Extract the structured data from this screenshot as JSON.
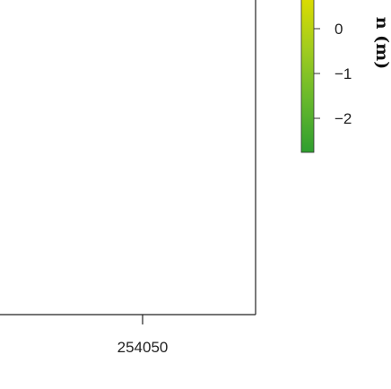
{
  "chart_data": {
    "type": "heatmap",
    "title": "",
    "xlabel": "",
    "ylabel": "",
    "x_ticks": [
      {
        "value": 254050,
        "label": "254050"
      }
    ],
    "colorbar": {
      "label": "n (m)",
      "ticks": [
        {
          "value": 0,
          "label": "0"
        },
        {
          "value": -1,
          "label": "−1"
        },
        {
          "value": -2,
          "label": "−2"
        }
      ],
      "range": [
        -2.6,
        0.5
      ],
      "colors": [
        "#2f9e2f",
        "#66b82c",
        "#a0cc1f",
        "#dcdc00"
      ]
    }
  }
}
